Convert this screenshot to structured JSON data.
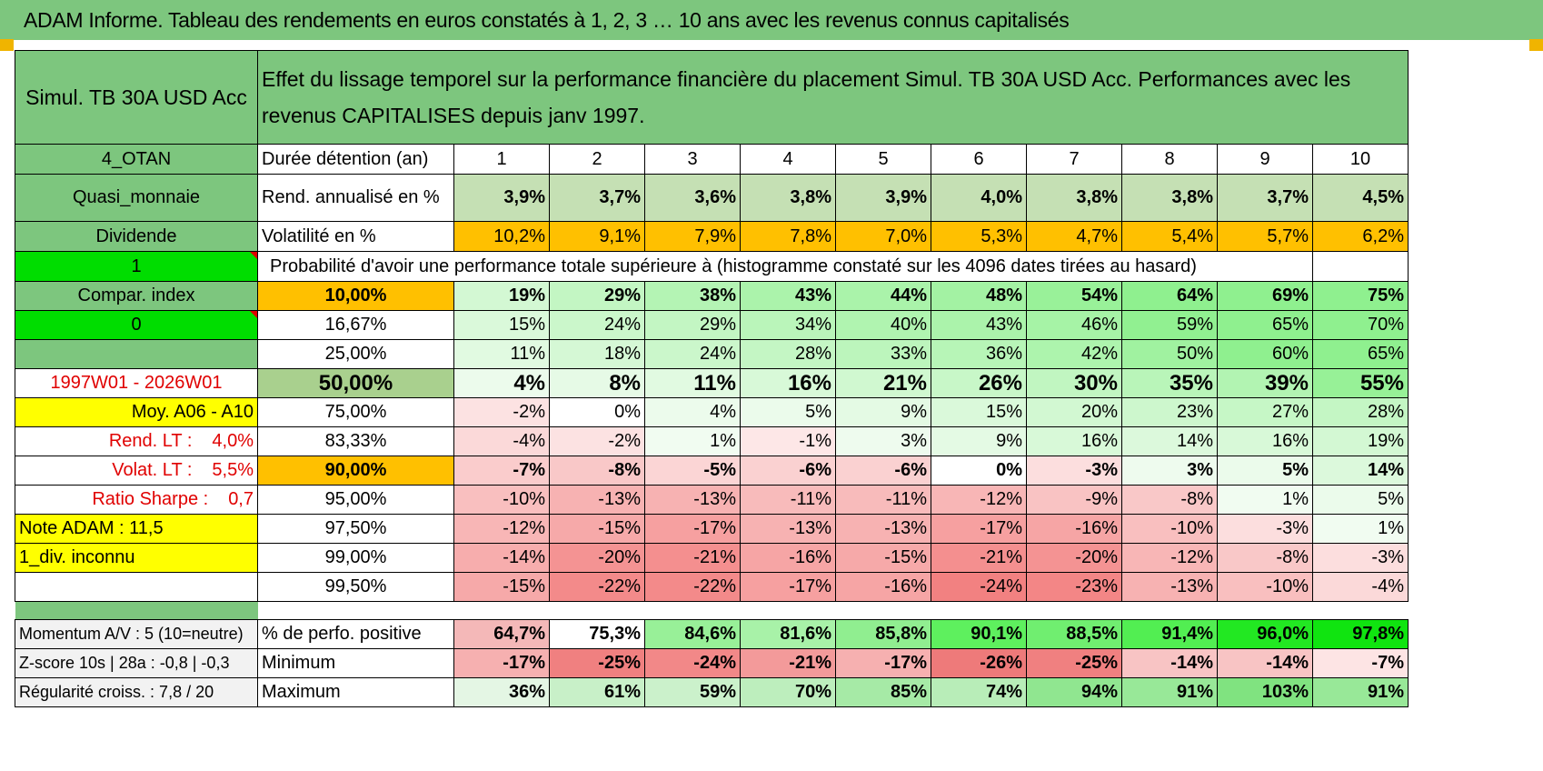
{
  "title": "ADAM Informe. Tableau des rendements en euros constatés à 1, 2, 3 … 10 ans avec les revenus connus capitalisés",
  "fund": "Simul. TB 30A USD Acc",
  "description": "Effet du lissage temporel sur la performance financière du placement Simul. TB 30A USD Acc. Performances avec les revenus CAPITALISES depuis janv 1997.",
  "left": {
    "zone": "4_OTAN",
    "type": "Quasi_monnaie",
    "dividend": "Dividende",
    "flag1": "1",
    "compar": "Compar. index",
    "flag0": "0",
    "period": "1997W01 - 2026W01",
    "moy": "Moy. A06 - A10",
    "rend_label": "Rend. LT :",
    "rend_value": "4,0%",
    "volat_label": "Volat. LT :",
    "volat_value": "5,5%",
    "sharpe_label": "Ratio Sharpe :",
    "sharpe_value": "0,7",
    "note": "Note ADAM : 11,5",
    "div": "1_div. inconnu",
    "momentum": "Momentum A/V : 5 (10=neutre)",
    "zscore": "Z-score 10s | 28a : -0,8 | -0,3",
    "regularite": "Régularité croiss. : 7,8 / 20"
  },
  "labels": {
    "duree": "Durée détention (an)",
    "rend": "Rend. annualisé en %",
    "volat": "Volatilité en %",
    "proba": "Probabilité d'avoir une performance totale supérieure à (histogramme constaté sur les 4096 dates tirées au hasard)",
    "pos": "% de perfo. positive",
    "min": "Minimum",
    "max": "Maximum"
  },
  "years": [
    "1",
    "2",
    "3",
    "4",
    "5",
    "6",
    "7",
    "8",
    "9",
    "10"
  ],
  "rend": [
    "3,9%",
    "3,7%",
    "3,6%",
    "3,8%",
    "3,9%",
    "4,0%",
    "3,8%",
    "3,8%",
    "3,7%",
    "4,5%"
  ],
  "volat": [
    "10,2%",
    "9,1%",
    "7,9%",
    "7,8%",
    "7,0%",
    "5,3%",
    "4,7%",
    "5,4%",
    "5,7%",
    "6,2%"
  ],
  "percentiles": [
    {
      "level": "10,00%",
      "values": [
        "19%",
        "29%",
        "38%",
        "43%",
        "44%",
        "48%",
        "54%",
        "64%",
        "69%",
        "75%"
      ]
    },
    {
      "level": "16,67%",
      "values": [
        "15%",
        "24%",
        "29%",
        "34%",
        "40%",
        "43%",
        "46%",
        "59%",
        "65%",
        "70%"
      ]
    },
    {
      "level": "25,00%",
      "values": [
        "11%",
        "18%",
        "24%",
        "28%",
        "33%",
        "36%",
        "42%",
        "50%",
        "60%",
        "65%"
      ]
    },
    {
      "level": "50,00%",
      "values": [
        "4%",
        "8%",
        "11%",
        "16%",
        "21%",
        "26%",
        "30%",
        "35%",
        "39%",
        "55%"
      ]
    },
    {
      "level": "75,00%",
      "values": [
        "-2%",
        "0%",
        "4%",
        "5%",
        "9%",
        "15%",
        "20%",
        "23%",
        "27%",
        "28%"
      ]
    },
    {
      "level": "83,33%",
      "values": [
        "-4%",
        "-2%",
        "1%",
        "-1%",
        "3%",
        "9%",
        "16%",
        "14%",
        "16%",
        "19%"
      ]
    },
    {
      "level": "90,00%",
      "values": [
        "-7%",
        "-8%",
        "-5%",
        "-6%",
        "-6%",
        "0%",
        "-3%",
        "3%",
        "5%",
        "14%"
      ]
    },
    {
      "level": "95,00%",
      "values": [
        "-10%",
        "-13%",
        "-13%",
        "-11%",
        "-11%",
        "-12%",
        "-9%",
        "-8%",
        "1%",
        "5%"
      ]
    },
    {
      "level": "97,50%",
      "values": [
        "-12%",
        "-15%",
        "-17%",
        "-13%",
        "-13%",
        "-17%",
        "-16%",
        "-10%",
        "-3%",
        "1%"
      ]
    },
    {
      "level": "99,00%",
      "values": [
        "-14%",
        "-20%",
        "-21%",
        "-16%",
        "-15%",
        "-21%",
        "-20%",
        "-12%",
        "-8%",
        "-3%"
      ]
    },
    {
      "level": "99,50%",
      "values": [
        "-15%",
        "-22%",
        "-22%",
        "-17%",
        "-16%",
        "-24%",
        "-23%",
        "-13%",
        "-10%",
        "-4%"
      ]
    }
  ],
  "positive": [
    "64,7%",
    "75,3%",
    "84,6%",
    "81,6%",
    "85,8%",
    "90,1%",
    "88,5%",
    "91,4%",
    "96,0%",
    "97,8%"
  ],
  "minimum": [
    "-17%",
    "-25%",
    "-24%",
    "-21%",
    "-17%",
    "-26%",
    "-25%",
    "-14%",
    "-14%",
    "-7%"
  ],
  "maximum": [
    "36%",
    "61%",
    "59%",
    "70%",
    "85%",
    "74%",
    "94%",
    "91%",
    "103%",
    "91%"
  ],
  "colors": {
    "header_green": "#7dc67e",
    "bright_green": "#00dd00",
    "yellow": "#ffff00",
    "orange": "#ffc000",
    "red_text": "#e00000",
    "light_green": "#c5e0b4",
    "sage": "#a9d08e"
  }
}
